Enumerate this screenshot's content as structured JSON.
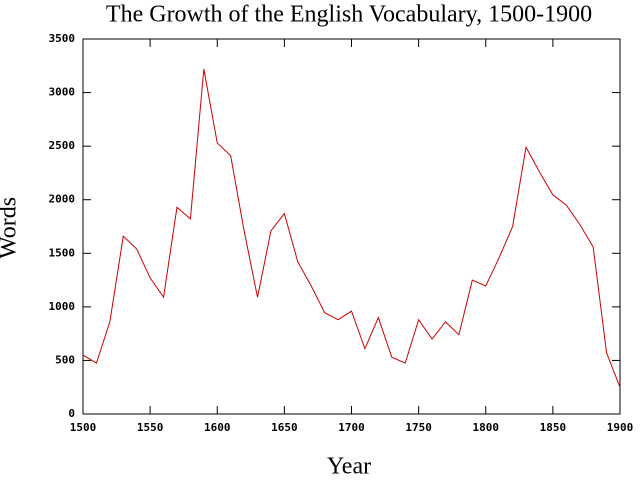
{
  "chart_data": {
    "type": "line",
    "title": "The Growth of the English Vocabulary, 1500-1900",
    "x_label": "Year",
    "y_label": "Words",
    "x": [
      1500,
      1510,
      1520,
      1530,
      1540,
      1550,
      1560,
      1570,
      1580,
      1590,
      1600,
      1610,
      1620,
      1630,
      1640,
      1650,
      1660,
      1670,
      1680,
      1690,
      1700,
      1710,
      1720,
      1730,
      1740,
      1750,
      1760,
      1770,
      1780,
      1790,
      1800,
      1810,
      1820,
      1830,
      1840,
      1850,
      1860,
      1870,
      1880,
      1890,
      1900
    ],
    "series": [
      {
        "name": "Words",
        "color": "#cc0000",
        "values": [
          550,
          475,
          860,
          1660,
          1540,
          1270,
          1090,
          1930,
          1820,
          3220,
          2530,
          2410,
          1710,
          1090,
          1710,
          1870,
          1420,
          1195,
          945,
          880,
          960,
          610,
          900,
          530,
          475,
          880,
          700,
          860,
          740,
          1250,
          1195,
          1460,
          1750,
          2490,
          2260,
          2045,
          1950,
          1770,
          1560,
          570,
          250
        ]
      }
    ],
    "xlim": [
      1500,
      1900
    ],
    "xticks": [
      1500,
      1550,
      1600,
      1650,
      1700,
      1750,
      1800,
      1850,
      1900
    ],
    "ylim": [
      0,
      3500
    ],
    "yticks": [
      0,
      500,
      1000,
      1500,
      2000,
      2500,
      3000,
      3500
    ],
    "grid": false
  }
}
